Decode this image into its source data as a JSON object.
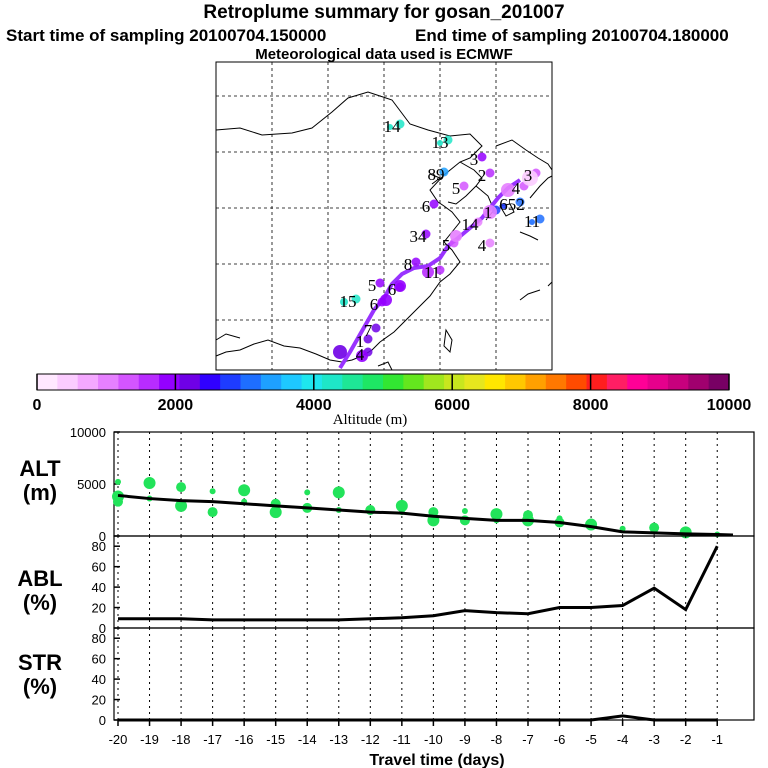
{
  "header": {
    "title": "Retroplume summary for gosan_201007",
    "start_time": "Start time of sampling 20100704.150000",
    "end_time": "End time of sampling 20100704.180000",
    "met_data": "Meteorological data used is ECMWF"
  },
  "colorbar": {
    "tick_labels": [
      "0",
      "2000",
      "4000",
      "6000",
      "8000",
      "10000"
    ],
    "label": "Altitude (m)",
    "colors": [
      "#ffe8ff",
      "#fbccff",
      "#f4a8ff",
      "#e680ff",
      "#d455ff",
      "#b82cff",
      "#9400ff",
      "#6f00e6",
      "#3000ff",
      "#1e3cff",
      "#1e6eff",
      "#1ea0ff",
      "#1ec8ff",
      "#1ee6ee",
      "#1ee6c8",
      "#1ee696",
      "#1ee664",
      "#32e632",
      "#64e61e",
      "#a0e61e",
      "#c8e61e",
      "#e6e61e",
      "#ffe600",
      "#ffc800",
      "#ffa000",
      "#ff7800",
      "#ff4b00",
      "#ff1e1e",
      "#ff1e64",
      "#ff0096",
      "#e6008c",
      "#c8007d",
      "#a0006e",
      "#780064"
    ]
  },
  "map": {
    "numbers": [
      {
        "t": "14",
        "c": "#1ee6c8"
      },
      {
        "t": "13",
        "c": "#1ee6c8"
      },
      {
        "t": "3",
        "c": "#9400ff"
      },
      {
        "t": "89",
        "c": "#1ea0ff"
      },
      {
        "t": "5",
        "c": "#d455ff"
      },
      {
        "t": "2",
        "c": "#b82cff"
      },
      {
        "t": "3",
        "c": "#d455ff"
      },
      {
        "t": "4",
        "c": "#d455ff"
      },
      {
        "t": "6",
        "c": "#9400ff"
      },
      {
        "t": "1",
        "c": "#1e3cff"
      },
      {
        "t": "652",
        "c": "#1e6eff"
      },
      {
        "t": "11",
        "c": "#1e6eff"
      },
      {
        "t": "14",
        "c": "#e680ff"
      },
      {
        "t": "34",
        "c": "#9400ff"
      },
      {
        "t": "5",
        "c": "#d455ff"
      },
      {
        "t": "4",
        "c": "#e680ff"
      },
      {
        "t": "8",
        "c": "#9400ff"
      },
      {
        "t": "11",
        "c": "#b82cff"
      },
      {
        "t": "6",
        "c": "#9400ff"
      },
      {
        "t": "5",
        "c": "#9400ff"
      },
      {
        "t": "15",
        "c": "#1ee6c8"
      },
      {
        "t": "6",
        "c": "#9400ff"
      },
      {
        "t": "7",
        "c": "#6f00e6"
      },
      {
        "t": "1",
        "c": "#6f00e6"
      },
      {
        "t": "4",
        "c": "#6f00e6"
      }
    ]
  },
  "chart_data": [
    {
      "type": "scatter",
      "panel": "ALT",
      "ylabel": "ALT\n(m)",
      "ylabel_line1": "ALT",
      "ylabel_line2": "(m)",
      "ylim": [
        0,
        10000
      ],
      "yticks": [
        "10000",
        "5000",
        "0"
      ],
      "xlim": [
        -20,
        -0.5
      ],
      "series": [
        {
          "name": "median altitude",
          "x": [
            -20,
            -19,
            -18,
            -17,
            -16,
            -15,
            -14,
            -13,
            -12,
            -11,
            -10,
            -9,
            -8,
            -7,
            -6,
            -5,
            -4,
            -3,
            -2,
            -1,
            -0.5
          ],
          "values": [
            3900,
            3600,
            3400,
            3300,
            3100,
            2900,
            2700,
            2500,
            2300,
            2200,
            1900,
            1700,
            1500,
            1500,
            1300,
            900,
            400,
            300,
            200,
            150,
            100
          ]
        },
        {
          "name": "cluster altitudes",
          "x": [
            -20,
            -20,
            -20,
            -19,
            -19,
            -18,
            -18,
            -17,
            -17,
            -16,
            -16,
            -15,
            -15,
            -14,
            -14,
            -13,
            -13,
            -12,
            -11,
            -11,
            -10,
            -10,
            -9,
            -9,
            -8,
            -8,
            -7,
            -7,
            -6,
            -6,
            -5,
            -4,
            -3,
            -2,
            -1
          ],
          "values": [
            3800,
            5200,
            3300,
            5100,
            3600,
            4700,
            2900,
            4300,
            2300,
            4400,
            3300,
            3100,
            2300,
            4200,
            2700,
            4200,
            2500,
            2500,
            2900,
            2300,
            2300,
            1500,
            2400,
            1500,
            2100,
            1500,
            2000,
            1500,
            1700,
            1300,
            1100,
            700,
            800,
            350,
            150
          ]
        }
      ]
    },
    {
      "type": "line",
      "panel": "ABL",
      "ylabel_line1": "ABL",
      "ylabel_line2": "(%)",
      "ylim": [
        0,
        90
      ],
      "yticks": [
        "0",
        "20",
        "40",
        "60",
        "80"
      ],
      "series": [
        {
          "name": "ABL fraction",
          "x": [
            -20,
            -18,
            -17,
            -16,
            -15,
            -14,
            -13,
            -12,
            -11,
            -10,
            -9,
            -8,
            -7,
            -6,
            -5,
            -4,
            -3,
            -2,
            -1
          ],
          "values": [
            9,
            9,
            8,
            8,
            8,
            8,
            8,
            9,
            10,
            12,
            17,
            15,
            14,
            20,
            20,
            22,
            39,
            18,
            80
          ]
        }
      ]
    },
    {
      "type": "line",
      "panel": "STR",
      "ylabel_line1": "STR",
      "ylabel_line2": "(%)",
      "ylim": [
        0,
        90
      ],
      "yticks": [
        "0",
        "20",
        "40",
        "60",
        "80"
      ],
      "series": [
        {
          "name": "STR fraction",
          "x": [
            -20,
            -5,
            -4.5,
            -4,
            -3.5,
            -3,
            -1
          ],
          "values": [
            0,
            0,
            2,
            4,
            2,
            0,
            0
          ]
        }
      ]
    }
  ],
  "xaxis": {
    "label": "Travel time (days)",
    "ticks": [
      "-20",
      "-19",
      "-18",
      "-17",
      "-16",
      "-15",
      "-14",
      "-13",
      "-12",
      "-11",
      "-10",
      "-9",
      "-8",
      "-7",
      "-6",
      "-5",
      "-4",
      "-3",
      "-2",
      "-1"
    ]
  }
}
